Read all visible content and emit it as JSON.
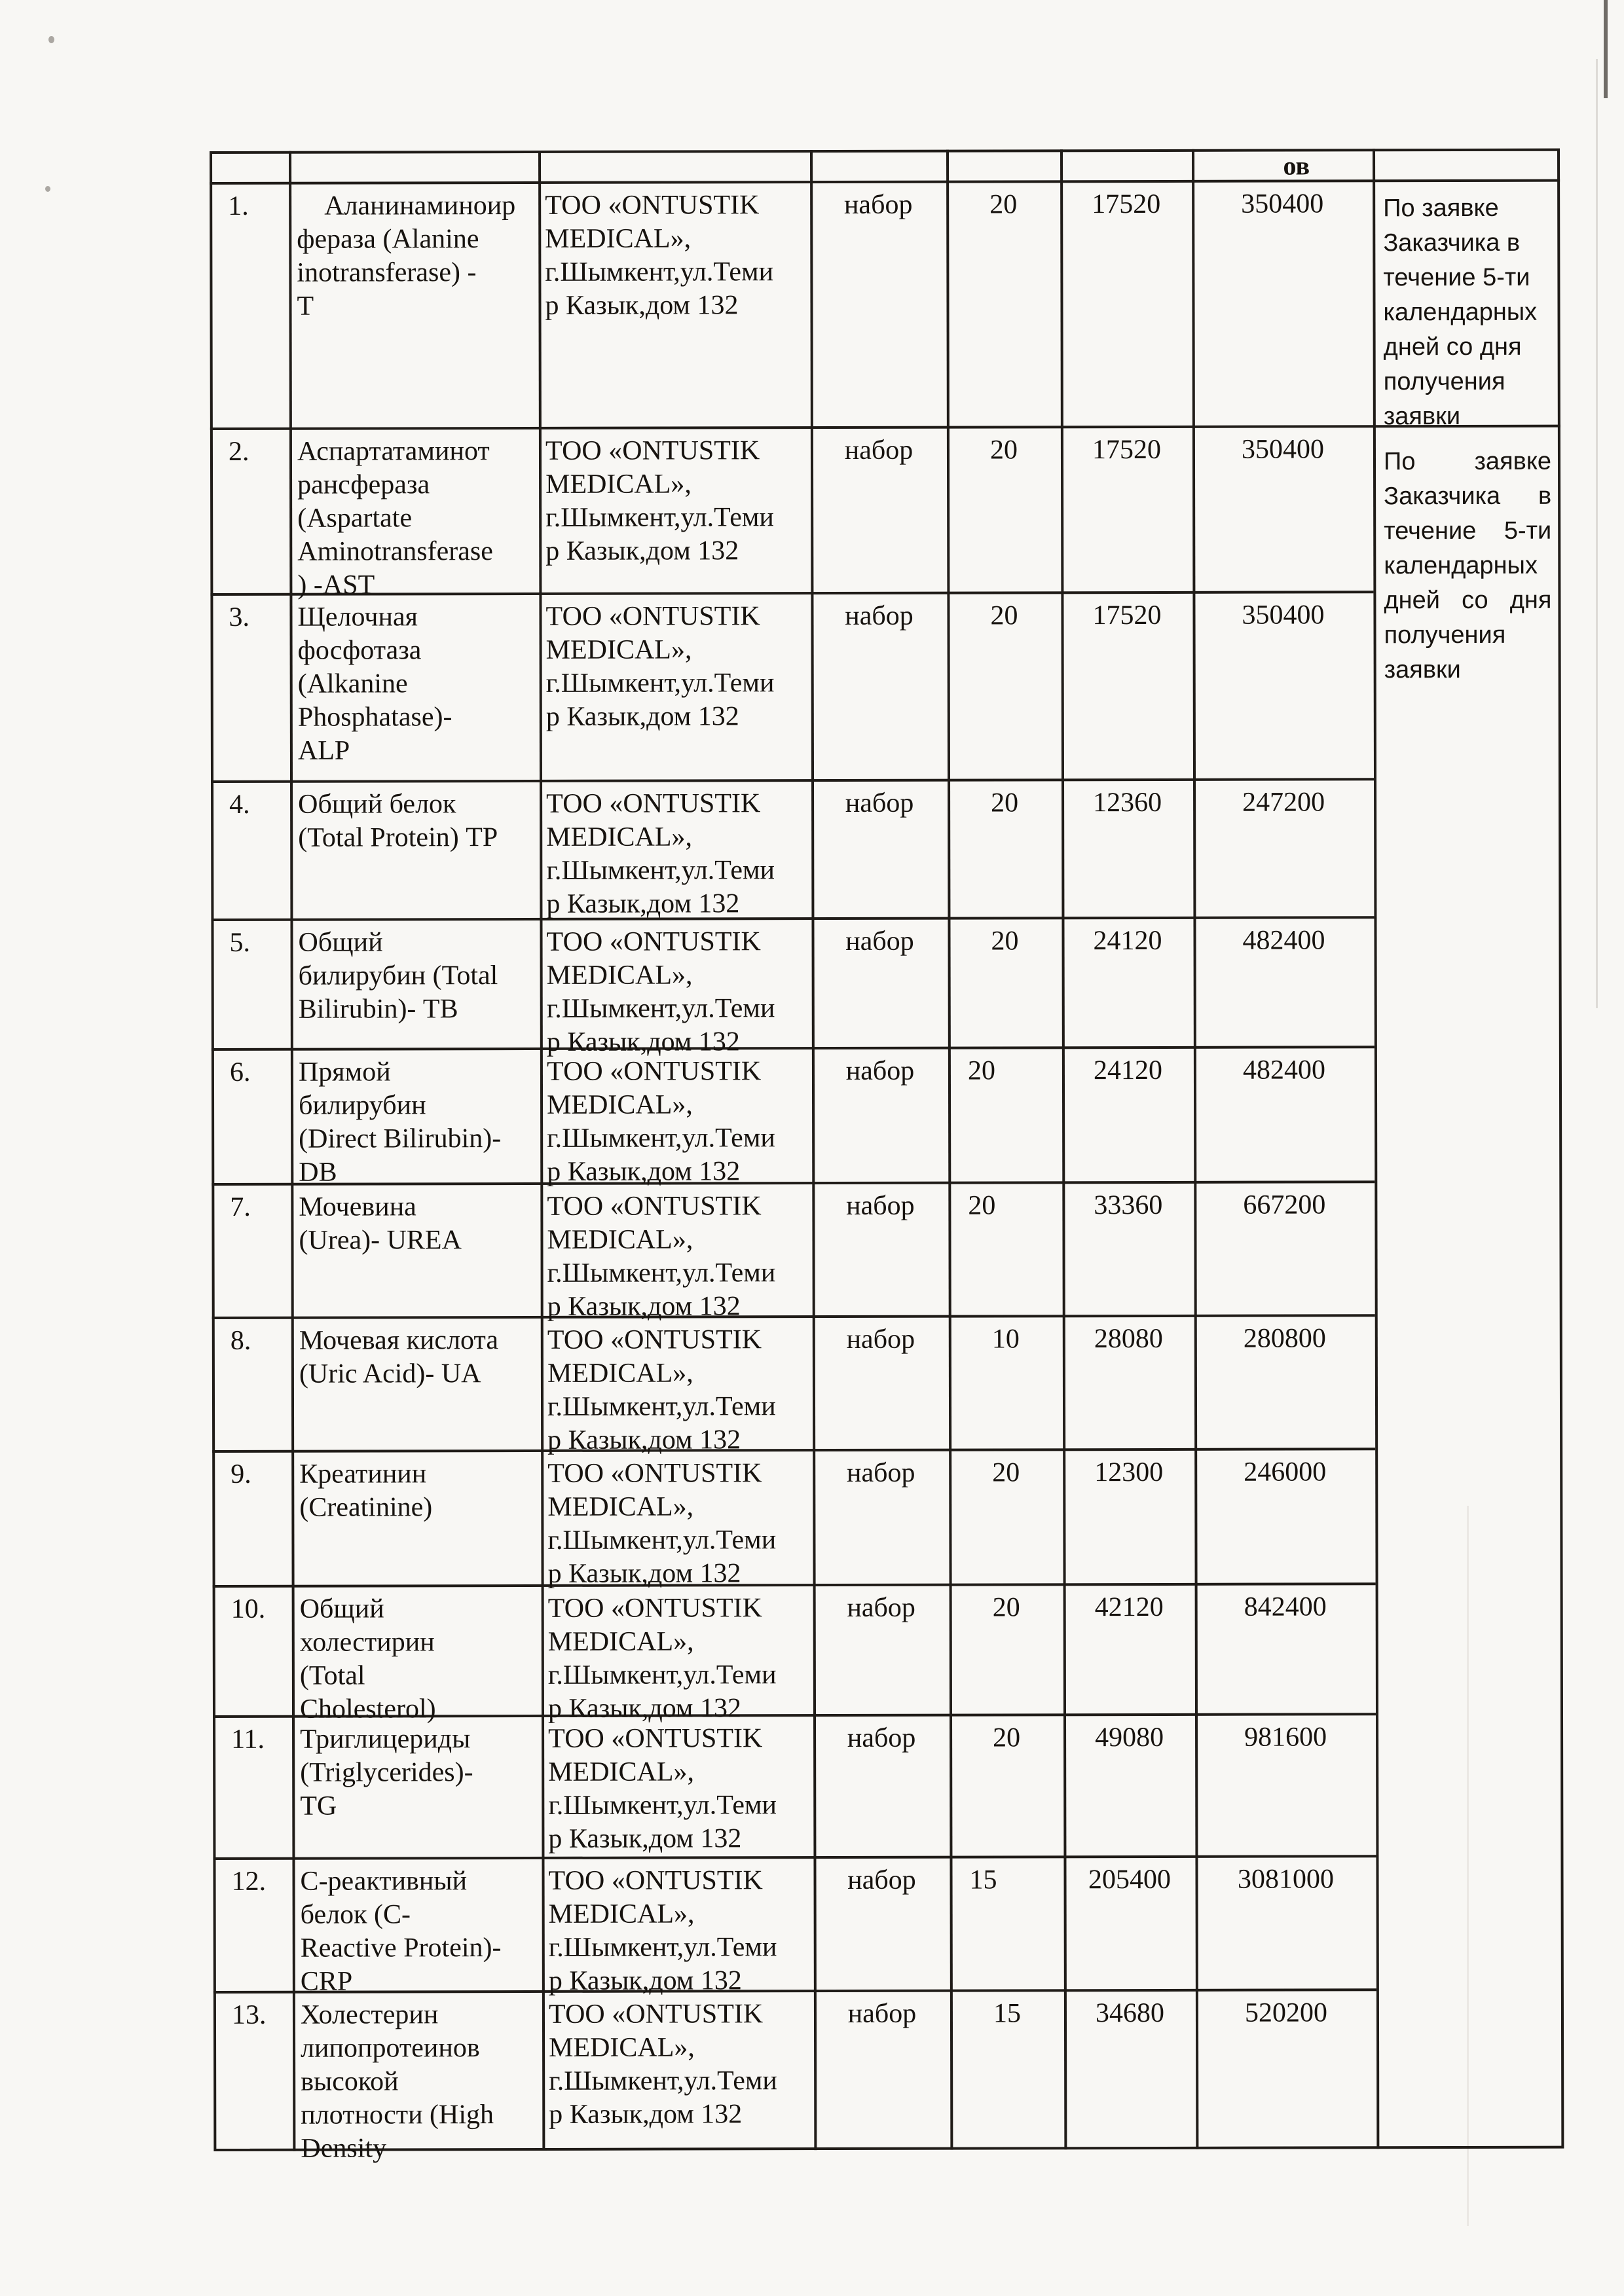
{
  "table": {
    "header": {
      "partial_text": "ов"
    },
    "rows": [
      {
        "num": "1.",
        "name": "    Аланинаминоир\nфераза (Alanine\ninotransferase) -\nT",
        "supplier": "ТОО «ONTUSTIK\nMEDICAL»,\nг.Шымкент,ул.Теми\nр Казык,дом 132",
        "unit": "набор",
        "qty": "20",
        "price": "17520",
        "total": "350400",
        "delivery": "По заявке\nЗаказчика в\nтечение 5-ти\nкалендарных\nдней со дня\nполучения\nзаявки"
      },
      {
        "num": "2.",
        "name": "Аспартатаминот\nрансфераза\n(Aspartate\nAminotransferase\n) -AST",
        "supplier": "ТОО «ONTUSTIK\nMEDICAL»,\nг.Шымкент,ул.Теми\nр Казык,дом 132",
        "unit": "набор",
        "qty": "20",
        "price": "17520",
        "total": "350400",
        "delivery": "По заявке Заказчика в течение 5-ти календарных дней со дня получения заявки"
      },
      {
        "num": "3.",
        "name": "Щелочная\nфосфотаза\n(Alkanine\nPhosphatase)-\nALP",
        "supplier": "ТОО «ONTUSTIK\nMEDICAL»,\nг.Шымкент,ул.Теми\nр Казык,дом 132",
        "unit": "набор",
        "qty": "20",
        "price": "17520",
        "total": "350400"
      },
      {
        "num": "4.",
        "name": "Общий белок\n(Total Protein) TP",
        "supplier": "ТОО «ONTUSTIK\nMEDICAL»,\nг.Шымкент,ул.Теми\nр Казык,дом 132",
        "unit": "набор",
        "qty": "20",
        "price": "12360",
        "total": "247200"
      },
      {
        "num": "5.",
        "name": "Общий\nбилирубин (Total\nBilirubin)- TB",
        "supplier": "ТОО «ONTUSTIK\nMEDICAL»,\nг.Шымкент,ул.Теми\nр Казык,дом 132",
        "unit": "набор",
        "qty": "20",
        "price": "24120",
        "total": "482400"
      },
      {
        "num": "6.",
        "name": "Прямой\nбилирубин\n(Direct Bilirubin)-\nDB",
        "supplier": "ТОО «ONTUSTIK\nMEDICAL»,\nг.Шымкент,ул.Теми\nр Казык,дом 132",
        "unit": "набор",
        "qty": "20",
        "price": "24120",
        "total": "482400"
      },
      {
        "num": "7.",
        "name": "Мочевина\n(Urea)- UREA",
        "supplier": "ТОО «ONTUSTIK\nMEDICAL»,\nг.Шымкент,ул.Теми\nр Казык,дом 132",
        "unit": "набор",
        "qty": "20",
        "price": "33360",
        "total": "667200"
      },
      {
        "num": "8.",
        "name": "Мочевая кислота\n(Uric Acid)- UA",
        "supplier": "ТОО «ONTUSTIK\nMEDICAL»,\nг.Шымкент,ул.Теми\nр Казык,дом 132",
        "unit": "набор",
        "qty": "10",
        "price": "28080",
        "total": "280800"
      },
      {
        "num": "9.",
        "name": "Креатинин\n(Creatinine)",
        "supplier": "ТОО «ONTUSTIK\nMEDICAL»,\nг.Шымкент,ул.Теми\nр Казык,дом 132",
        "unit": "набор",
        "qty": "20",
        "price": "12300",
        "total": "246000"
      },
      {
        "num": "10.",
        "name": "Общий\nхолестирин\n(Total\nCholesterol)",
        "supplier": "ТОО «ONTUSTIK\nMEDICAL»,\nг.Шымкент,ул.Теми\nр Казык,дом 132",
        "unit": "набор",
        "qty": "20",
        "price": "42120",
        "total": "842400"
      },
      {
        "num": "11.",
        "name": "Триглицериды\n(Triglycerides)-\nTG",
        "supplier": "ТОО «ONTUSTIK\nMEDICAL»,\nг.Шымкент,ул.Теми\nр Казык,дом 132",
        "unit": "набор",
        "qty": "20",
        "price": "49080",
        "total": "981600"
      },
      {
        "num": "12.",
        "name": "С-реактивный\nбелок (C-\nReactive Protein)-\nCRP",
        "supplier": "ТОО «ONTUSTIK\nMEDICAL»,\nг.Шымкент,ул.Теми\nр Казык,дом 132",
        "unit": "набор",
        "qty": "15",
        "price": "205400",
        "total": "3081000"
      },
      {
        "num": "13.",
        "name": "Холестерин\nлипопротеинов\nвысокой\nплотности (High\nDensity",
        "supplier": "ТОО «ONTUSTIK\nMEDICAL»,\nг.Шымкент,ул.Теми\nр Казык,дом 132",
        "unit": "набор",
        "qty": "15",
        "price": "34680",
        "total": "520200"
      }
    ]
  }
}
